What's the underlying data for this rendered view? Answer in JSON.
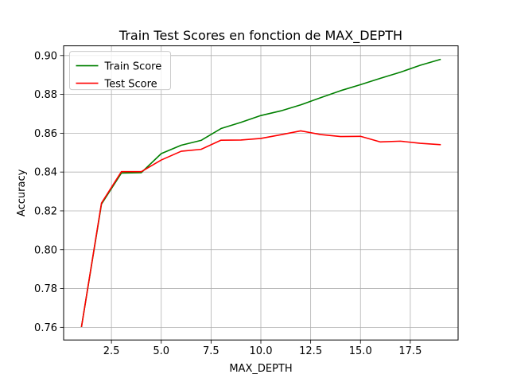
{
  "chart_data": {
    "type": "line",
    "title": "Train Test Scores en fonction de MAX_DEPTH",
    "xlabel": "MAX_DEPTH",
    "ylabel": "Accuracy",
    "x": [
      1,
      2,
      3,
      4,
      5,
      6,
      7,
      8,
      9,
      10,
      11,
      12,
      13,
      14,
      15,
      16,
      17,
      18,
      19
    ],
    "xlim": [
      0.1,
      19.9
    ],
    "ylim": [
      0.7535,
      0.905
    ],
    "xticks": [
      "2.5",
      "5.0",
      "7.5",
      "10.0",
      "12.5",
      "15.0",
      "17.5"
    ],
    "yticks": [
      "0.76",
      "0.78",
      "0.80",
      "0.82",
      "0.84",
      "0.86",
      "0.88",
      "0.90"
    ],
    "grid": true,
    "legend_position": "top-left",
    "series": [
      {
        "name": "Train Score",
        "color": "#008000",
        "values": [
          0.7605,
          0.8235,
          0.8395,
          0.8397,
          0.8495,
          0.8538,
          0.8563,
          0.8624,
          0.8656,
          0.8691,
          0.8715,
          0.8746,
          0.8783,
          0.8819,
          0.885,
          0.8883,
          0.8914,
          0.895,
          0.898
        ]
      },
      {
        "name": "Test Score",
        "color": "#ff0000",
        "values": [
          0.7605,
          0.824,
          0.8402,
          0.8402,
          0.8462,
          0.8507,
          0.8517,
          0.8564,
          0.8565,
          0.8573,
          0.8592,
          0.8612,
          0.8593,
          0.8583,
          0.8584,
          0.8555,
          0.8559,
          0.8548,
          0.8541
        ]
      }
    ]
  }
}
